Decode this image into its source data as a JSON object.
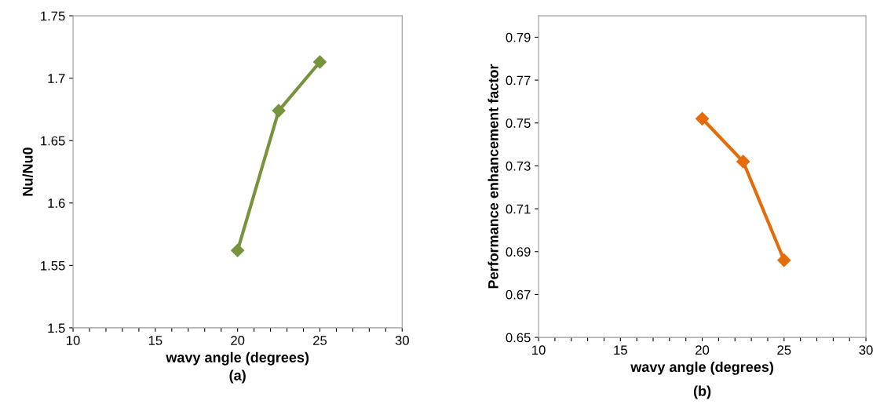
{
  "chart_data": [
    {
      "type": "line",
      "xlabel": "wavy angle (degrees)",
      "ylabel": "Nu/Nu0",
      "annotations": [
        "(a)"
      ],
      "x": [
        20,
        22.5,
        25
      ],
      "series": [
        {
          "color": "#77933c",
          "values": [
            1.562,
            1.674,
            1.713
          ]
        }
      ],
      "marker": "diamond",
      "line_style": "solid",
      "grid": false,
      "xlim": [
        10,
        30
      ],
      "ylim": [
        1.5,
        1.75
      ],
      "xticks": [
        10,
        {
          "value": 11,
          "label": null
        },
        {
          "value": 12,
          "label": null
        },
        {
          "value": 13,
          "label": null
        },
        {
          "value": 14,
          "label": null
        },
        15,
        {
          "value": 16,
          "label": null
        },
        {
          "value": 17,
          "label": null
        },
        {
          "value": 18,
          "label": null
        },
        {
          "value": 19,
          "label": null
        },
        20,
        {
          "value": 21,
          "label": null
        },
        {
          "value": 22,
          "label": null
        },
        {
          "value": 23,
          "label": null
        },
        {
          "value": 24,
          "label": null
        },
        25,
        {
          "value": 26,
          "label": null
        },
        {
          "value": 27,
          "label": null
        },
        {
          "value": 28,
          "label": null
        },
        {
          "value": 29,
          "label": null
        },
        30
      ],
      "yticks": [
        1.5,
        1.55,
        1.6,
        1.65,
        1.7,
        1.75
      ]
    },
    {
      "type": "line",
      "xlabel": "wavy angle (degrees)",
      "ylabel": "Performance enhancement factor",
      "annotations": [
        "(b)"
      ],
      "x": [
        20,
        22.5,
        25
      ],
      "series": [
        {
          "color": "#e46c0a",
          "values": [
            0.752,
            0.732,
            0.686
          ]
        }
      ],
      "marker": "diamond",
      "line_style": "solid",
      "grid": false,
      "xlim": [
        10,
        30
      ],
      "ylim": [
        0.65,
        0.8
      ],
      "xticks": [
        10,
        {
          "value": 11,
          "label": null
        },
        {
          "value": 12,
          "label": null
        },
        {
          "value": 13,
          "label": null
        },
        {
          "value": 14,
          "label": null
        },
        15,
        {
          "value": 16,
          "label": null
        },
        {
          "value": 17,
          "label": null
        },
        {
          "value": 18,
          "label": null
        },
        {
          "value": 19,
          "label": null
        },
        20,
        {
          "value": 21,
          "label": null
        },
        {
          "value": 22,
          "label": null
        },
        {
          "value": 23,
          "label": null
        },
        {
          "value": 24,
          "label": null
        },
        25,
        {
          "value": 26,
          "label": null
        },
        {
          "value": 27,
          "label": null
        },
        {
          "value": 28,
          "label": null
        },
        {
          "value": 29,
          "label": null
        },
        30
      ],
      "yticks": [
        0.65,
        0.67,
        0.69,
        0.71,
        0.73,
        0.75,
        0.77,
        0.79
      ]
    }
  ]
}
